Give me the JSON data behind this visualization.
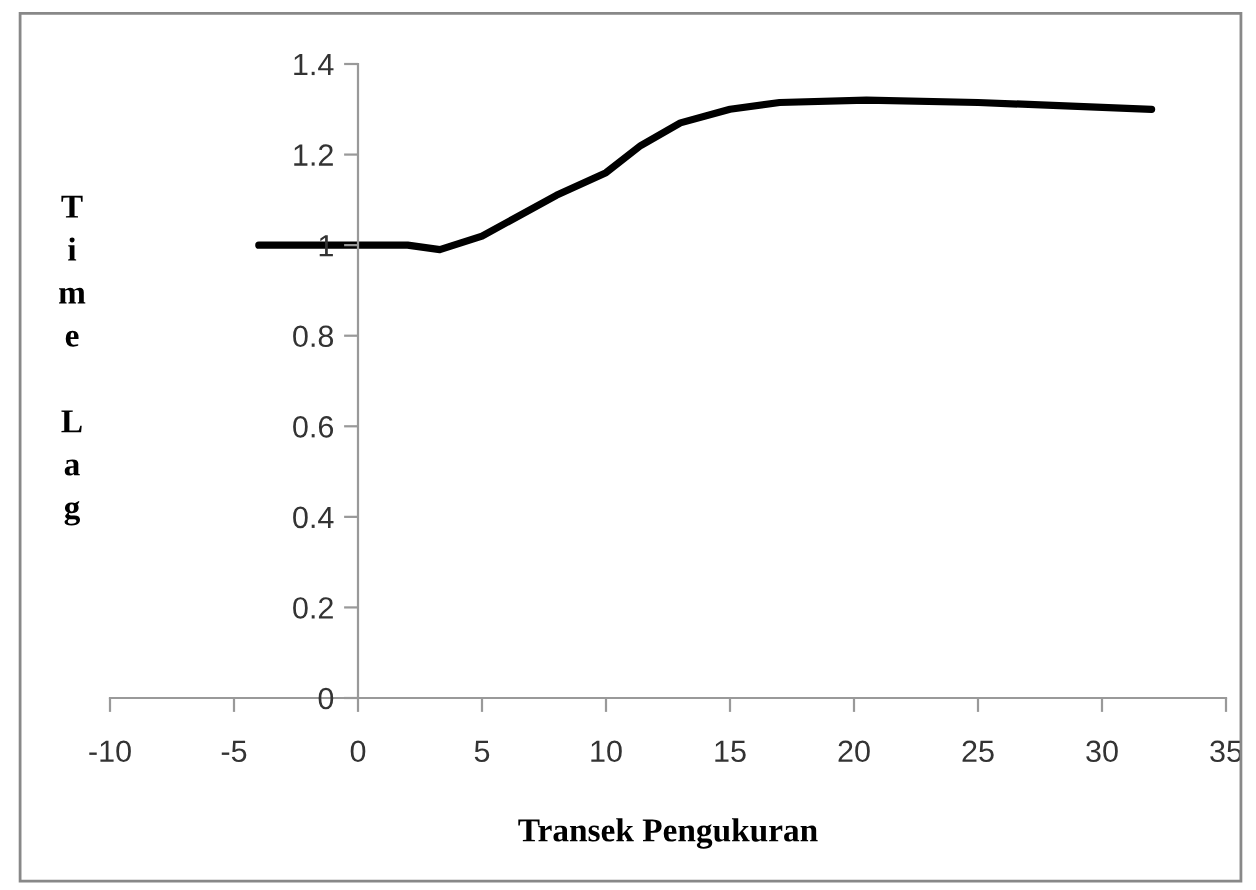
{
  "chart_data": {
    "type": "line",
    "xlabel": "Transek Pengukuran",
    "ylabel": "Time Lag",
    "x": [
      -4,
      2,
      3.3,
      5,
      8,
      10,
      11.4,
      13,
      15,
      17,
      20.5,
      25,
      32
    ],
    "series": [
      {
        "color": "#000000",
        "values": [
          1.0,
          1.0,
          0.99,
          1.02,
          1.11,
          1.16,
          1.22,
          1.27,
          1.3,
          1.315,
          1.32,
          1.315,
          1.3
        ]
      }
    ],
    "xlim": [
      -10,
      35
    ],
    "xticks": [
      -10,
      -5,
      0,
      5,
      10,
      15,
      20,
      25,
      30,
      35
    ],
    "ylim": [
      0,
      1.4
    ],
    "yticks": [
      0,
      0.2,
      0.4,
      0.6,
      0.8,
      1,
      1.2,
      1.4
    ],
    "grid": false,
    "legend": false,
    "marker": "none",
    "line_style": "solid"
  }
}
